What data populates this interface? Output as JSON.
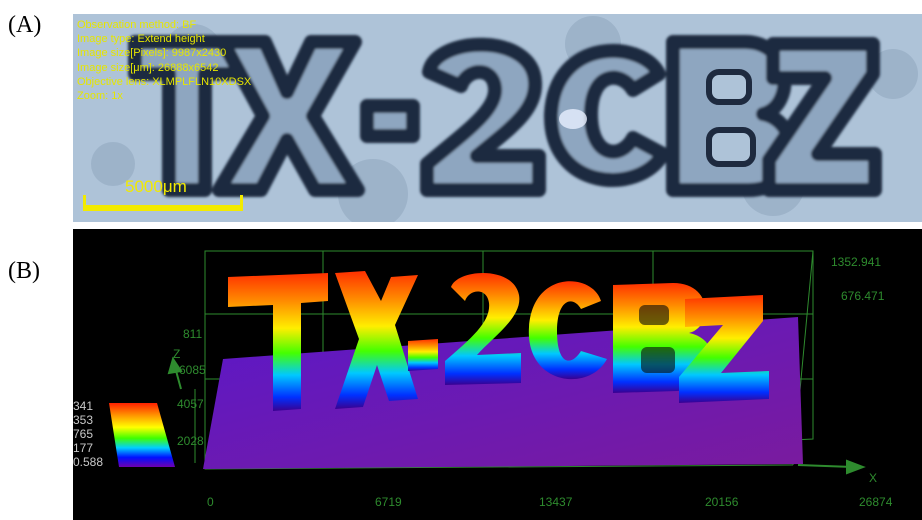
{
  "panels": {
    "a_label": "(A)",
    "b_label": "(B)"
  },
  "microscope": {
    "info_lines": [
      "Observation method: BF",
      "Image type: Extend height",
      "Image size[Pixels]: 9987x2430",
      "Image size[μm]: 26888x6542",
      "Objective lens: XLMPLFLN10XDSX",
      "Zoom: 1x"
    ],
    "scale_label": "5000μm",
    "letters": "TX-2CBZ"
  },
  "height_map": {
    "z_axis_label": "Z",
    "x_axis_label": "X",
    "z_right_ticks": [
      "1352.941",
      "676.471"
    ],
    "z_left_ticks": [
      "811",
      "6085",
      "4057",
      "2028"
    ],
    "x_ticks": [
      "0",
      "6719",
      "13437",
      "20156",
      "26874"
    ],
    "legend_values": [
      "341",
      "353",
      "765",
      "177",
      "0.588"
    ],
    "colors": {
      "grid": "#2e8b2e",
      "base": "#6a1fc7",
      "high": "#ff3a00",
      "low": "#0000ff"
    }
  }
}
